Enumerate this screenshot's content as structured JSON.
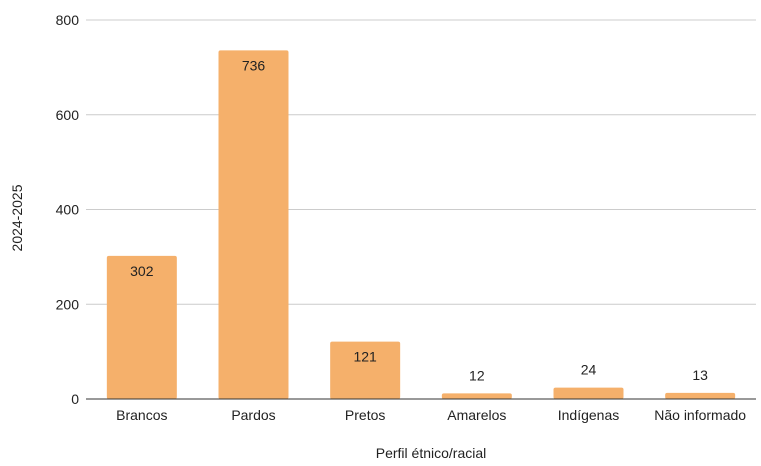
{
  "chart_data": {
    "type": "bar",
    "title": "",
    "xlabel": "Perfil étnico/racial",
    "ylabel": "2024-2025",
    "categories": [
      "Brancos",
      "Pardos",
      "Pretos",
      "Amarelos",
      "Indígenas",
      "Não informado"
    ],
    "values": [
      302,
      736,
      121,
      12,
      24,
      13
    ],
    "ylim": [
      0,
      800
    ],
    "yticks": [
      0,
      200,
      400,
      600,
      800
    ],
    "ytick_labels": [
      "0",
      "200",
      "400",
      "600",
      "800"
    ],
    "data_labels": [
      "302",
      "736",
      "121",
      "12",
      "24",
      "13"
    ],
    "grid": true,
    "legend": "none",
    "bar_color": "#F5B06B",
    "grid_color": "#CCCCCC",
    "axis_color": "#333333"
  }
}
